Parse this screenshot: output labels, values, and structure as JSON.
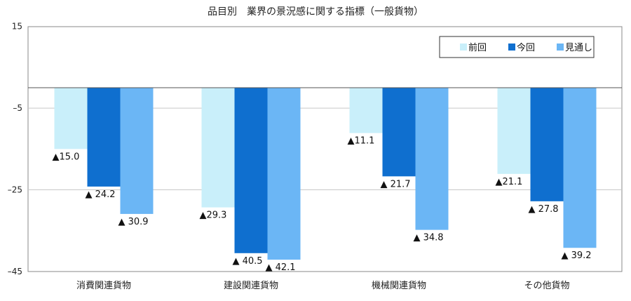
{
  "chart_data": {
    "type": "bar",
    "title": "品目別　業界の景況感に関する指標（一般貨物）",
    "xlabel": "",
    "ylabel": "",
    "ylim": [
      -45,
      15
    ],
    "yticks": [
      15,
      -5,
      -25,
      -45
    ],
    "ytick_labels": [
      "15",
      "–5",
      "–25",
      "–45"
    ],
    "grid": true,
    "legend_position": "top-right",
    "categories": [
      "消費関連貨物",
      "建設関連貨物",
      "機械関連貨物",
      "その他貨物"
    ],
    "series": [
      {
        "name": "前回",
        "color": "#c9effa",
        "values": [
          -15.0,
          -29.3,
          -11.1,
          -21.1
        ],
        "labels": [
          "▲15.0",
          "▲29.3",
          "▲11.1",
          "▲21.1"
        ]
      },
      {
        "name": "今回",
        "color": "#0f6fcf",
        "values": [
          -24.2,
          -40.5,
          -21.7,
          -27.8
        ],
        "labels": [
          "▲ 24.2",
          "▲ 40.5",
          "▲ 21.7",
          "▲ 27.8"
        ]
      },
      {
        "name": "見通し",
        "color": "#6bb6f5",
        "values": [
          -30.9,
          -42.1,
          -34.8,
          -39.2
        ],
        "labels": [
          "▲ 30.9",
          "▲ 42.1",
          "▲ 34.8",
          "▲ 39.2"
        ]
      }
    ]
  }
}
